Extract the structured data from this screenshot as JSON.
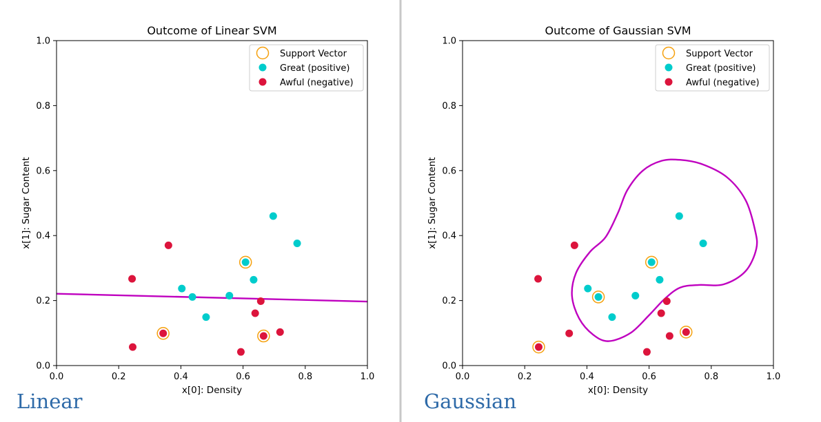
{
  "divider_color": "#c8c8c8",
  "colors": {
    "positive": "#00cccc",
    "negative": "#dc143c",
    "support_vector": "#f5a00d",
    "boundary": "#bf00bf"
  },
  "legend": {
    "support_vector": "Support Vector",
    "positive": "Great (positive)",
    "negative": "Awful (negative)"
  },
  "chart_data": [
    {
      "type": "scatter",
      "title": "Outcome of Linear SVM",
      "caption": "Linear",
      "xlabel": "x[0]: Density",
      "ylabel": "x[1]: Sugar Content",
      "xlim": [
        0,
        1
      ],
      "ylim": [
        0,
        1
      ],
      "xticks": [
        "0.0",
        "0.2",
        "0.4",
        "0.6",
        "0.8",
        "1.0"
      ],
      "yticks": [
        "0.0",
        "0.2",
        "0.4",
        "0.6",
        "0.8",
        "1.0"
      ],
      "grid": false,
      "legend_position": "top-right",
      "series": [
        {
          "name": "Great (positive)",
          "points": [
            [
              0.403,
              0.237
            ],
            [
              0.437,
              0.211
            ],
            [
              0.481,
              0.149
            ],
            [
              0.556,
              0.215
            ],
            [
              0.608,
              0.318
            ],
            [
              0.634,
              0.264
            ],
            [
              0.697,
              0.46
            ],
            [
              0.774,
              0.376
            ]
          ]
        },
        {
          "name": "Awful (negative)",
          "points": [
            [
              0.243,
              0.267
            ],
            [
              0.245,
              0.057
            ],
            [
              0.343,
              0.099
            ],
            [
              0.36,
              0.37
            ],
            [
              0.593,
              0.042
            ],
            [
              0.639,
              0.161
            ],
            [
              0.657,
              0.198
            ],
            [
              0.666,
              0.091
            ],
            [
              0.719,
              0.103
            ]
          ]
        }
      ],
      "support_vectors": [
        [
          0.343,
          0.099
        ],
        [
          0.608,
          0.318
        ],
        [
          0.666,
          0.091
        ]
      ],
      "boundary": {
        "kind": "line",
        "points": [
          [
            0.0,
            0.221
          ],
          [
            1.0,
            0.197
          ]
        ]
      }
    },
    {
      "type": "scatter",
      "title": "Outcome of Gaussian SVM",
      "caption": "Gaussian",
      "xlabel": "x[0]: Density",
      "ylabel": "x[1]: Sugar Content",
      "xlim": [
        0,
        1
      ],
      "ylim": [
        0,
        1
      ],
      "xticks": [
        "0.0",
        "0.2",
        "0.4",
        "0.6",
        "0.8",
        "1.0"
      ],
      "yticks": [
        "0.0",
        "0.2",
        "0.4",
        "0.6",
        "0.8",
        "1.0"
      ],
      "grid": false,
      "legend_position": "top-right",
      "series": [
        {
          "name": "Great (positive)",
          "points": [
            [
              0.403,
              0.237
            ],
            [
              0.437,
              0.211
            ],
            [
              0.481,
              0.149
            ],
            [
              0.556,
              0.215
            ],
            [
              0.608,
              0.318
            ],
            [
              0.634,
              0.264
            ],
            [
              0.697,
              0.46
            ],
            [
              0.774,
              0.376
            ]
          ]
        },
        {
          "name": "Awful (negative)",
          "points": [
            [
              0.243,
              0.267
            ],
            [
              0.245,
              0.057
            ],
            [
              0.343,
              0.099
            ],
            [
              0.36,
              0.37
            ],
            [
              0.593,
              0.042
            ],
            [
              0.639,
              0.161
            ],
            [
              0.657,
              0.198
            ],
            [
              0.666,
              0.091
            ],
            [
              0.719,
              0.103
            ]
          ]
        }
      ],
      "support_vectors": [
        [
          0.437,
          0.211
        ],
        [
          0.608,
          0.318
        ],
        [
          0.245,
          0.057
        ],
        [
          0.719,
          0.103
        ]
      ],
      "boundary": {
        "kind": "closed-curve",
        "points": [
          [
            0.47,
            0.075
          ],
          [
            0.42,
            0.095
          ],
          [
            0.375,
            0.145
          ],
          [
            0.352,
            0.215
          ],
          [
            0.365,
            0.285
          ],
          [
            0.41,
            0.35
          ],
          [
            0.46,
            0.395
          ],
          [
            0.5,
            0.47
          ],
          [
            0.53,
            0.54
          ],
          [
            0.58,
            0.6
          ],
          [
            0.64,
            0.63
          ],
          [
            0.7,
            0.633
          ],
          [
            0.77,
            0.62
          ],
          [
            0.85,
            0.58
          ],
          [
            0.91,
            0.51
          ],
          [
            0.94,
            0.42
          ],
          [
            0.945,
            0.36
          ],
          [
            0.91,
            0.29
          ],
          [
            0.84,
            0.25
          ],
          [
            0.76,
            0.248
          ],
          [
            0.7,
            0.24
          ],
          [
            0.65,
            0.205
          ],
          [
            0.6,
            0.155
          ],
          [
            0.54,
            0.1
          ]
        ]
      }
    }
  ]
}
